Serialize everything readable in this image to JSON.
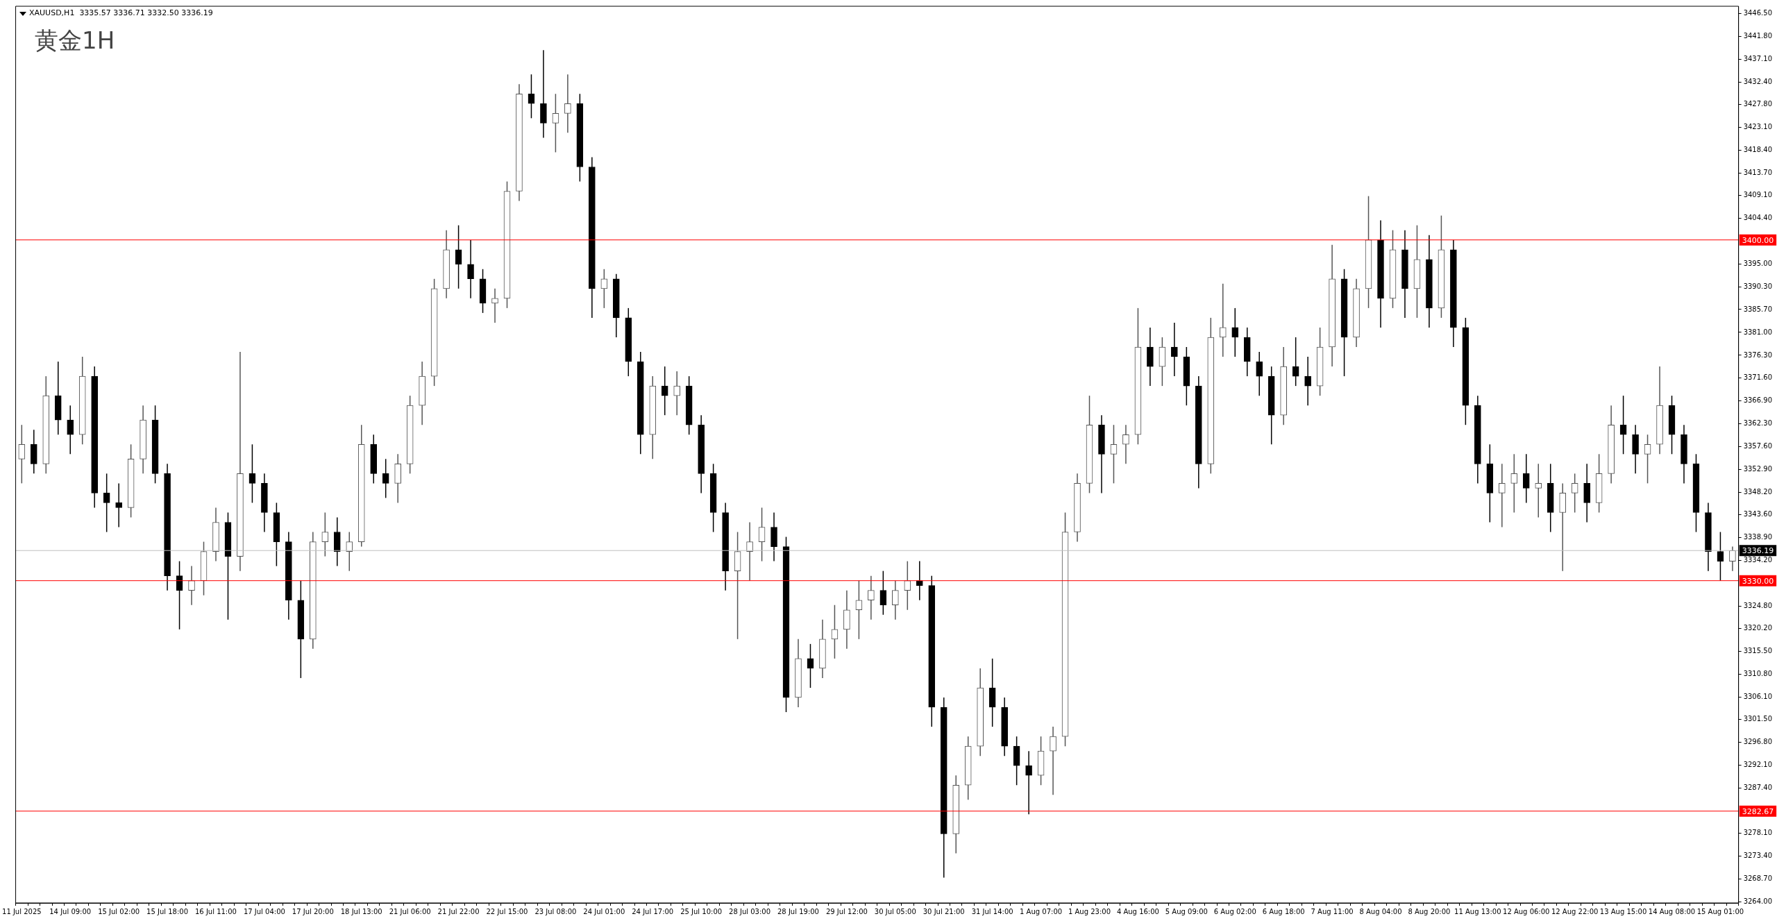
{
  "chart_data": {
    "type": "candlestick",
    "title": "黄金1H",
    "subtitle": "XAUUSD,H1  3335.57 3336.71 3332.50 3336.19",
    "grid": false,
    "legend": false,
    "categories": [
      "11 Jul 2025",
      null,
      null,
      null,
      "14 Jul 09:00",
      null,
      null,
      null,
      "15 Jul 02:00",
      null,
      null,
      null,
      "15 Jul 18:00",
      null,
      null,
      null,
      "16 Jul 11:00",
      null,
      null,
      null,
      "17 Jul 04:00",
      null,
      null,
      null,
      "17 Jul 20:00",
      null,
      null,
      null,
      "18 Jul 13:00",
      null,
      null,
      null,
      "21 Jul 06:00",
      null,
      null,
      null,
      "21 Jul 22:00",
      null,
      null,
      null,
      "22 Jul 15:00",
      null,
      null,
      null,
      "23 Jul 08:00",
      null,
      null,
      null,
      "24 Jul 01:00",
      null,
      null,
      null,
      "24 Jul 17:00",
      null,
      null,
      null,
      "25 Jul 10:00",
      null,
      null,
      null,
      "28 Jul 03:00",
      null,
      null,
      null,
      "28 Jul 19:00",
      null,
      null,
      null,
      "29 Jul 12:00",
      null,
      null,
      null,
      "30 Jul 05:00",
      null,
      null,
      null,
      "30 Jul 21:00",
      null,
      null,
      null,
      "31 Jul 14:00",
      null,
      null,
      null,
      "1 Aug 07:00",
      null,
      null,
      null,
      "1 Aug 23:00",
      null,
      null,
      null,
      "4 Aug 16:00",
      null,
      null,
      null,
      "5 Aug 09:00",
      null,
      null,
      null,
      "6 Aug 02:00",
      null,
      null,
      null,
      "6 Aug 18:00",
      null,
      null,
      null,
      "7 Aug 11:00",
      null,
      null,
      null,
      "8 Aug 04:00",
      null,
      null,
      null,
      "8 Aug 20:00",
      null,
      null,
      null,
      "11 Aug 13:00",
      null,
      null,
      null,
      "12 Aug 06:00",
      null,
      null,
      null,
      "12 Aug 22:00",
      null,
      null,
      null,
      "13 Aug 15:00",
      null,
      null,
      null,
      "14 Aug 08:00",
      null,
      null,
      null,
      "15 Aug 01:00",
      null
    ],
    "ohlc": [
      [
        3355,
        3362,
        3350,
        3358
      ],
      [
        3358,
        3361,
        3352,
        3354
      ],
      [
        3354,
        3372,
        3352,
        3368
      ],
      [
        3368,
        3375,
        3360,
        3363
      ],
      [
        3363,
        3366,
        3356,
        3360
      ],
      [
        3360,
        3376,
        3358,
        3372
      ],
      [
        3372,
        3374,
        3345,
        3348
      ],
      [
        3348,
        3352,
        3340,
        3346
      ],
      [
        3346,
        3350,
        3341,
        3345
      ],
      [
        3345,
        3358,
        3343,
        3355
      ],
      [
        3355,
        3366,
        3352,
        3363
      ],
      [
        3363,
        3366,
        3350,
        3352
      ],
      [
        3352,
        3354,
        3328,
        3331
      ],
      [
        3331,
        3334,
        3320,
        3328
      ],
      [
        3328,
        3333,
        3325,
        3330
      ],
      [
        3330,
        3338,
        3327,
        3336
      ],
      [
        3336,
        3345,
        3334,
        3342
      ],
      [
        3342,
        3344,
        3322,
        3335
      ],
      [
        3335,
        3377,
        3332,
        3352
      ],
      [
        3352,
        3358,
        3346,
        3350
      ],
      [
        3350,
        3352,
        3340,
        3344
      ],
      [
        3344,
        3346,
        3333,
        3338
      ],
      [
        3338,
        3340,
        3322,
        3326
      ],
      [
        3326,
        3330,
        3310,
        3318
      ],
      [
        3318,
        3340,
        3316,
        3338
      ],
      [
        3338,
        3344,
        3335,
        3340
      ],
      [
        3340,
        3343,
        3333,
        3336
      ],
      [
        3336,
        3340,
        3332,
        3338
      ],
      [
        3338,
        3362,
        3337,
        3358
      ],
      [
        3358,
        3360,
        3350,
        3352
      ],
      [
        3352,
        3355,
        3347,
        3350
      ],
      [
        3350,
        3356,
        3346,
        3354
      ],
      [
        3354,
        3368,
        3352,
        3366
      ],
      [
        3366,
        3375,
        3362,
        3372
      ],
      [
        3372,
        3392,
        3370,
        3390
      ],
      [
        3390,
        3402,
        3388,
        3398
      ],
      [
        3398,
        3403,
        3390,
        3395
      ],
      [
        3395,
        3400,
        3388,
        3392
      ],
      [
        3392,
        3394,
        3385,
        3387
      ],
      [
        3387,
        3390,
        3383,
        3388
      ],
      [
        3388,
        3412,
        3386,
        3410
      ],
      [
        3410,
        3432,
        3408,
        3430
      ],
      [
        3430,
        3434,
        3425,
        3428
      ],
      [
        3428,
        3439,
        3421,
        3424
      ],
      [
        3424,
        3430,
        3418,
        3426
      ],
      [
        3426,
        3434,
        3422,
        3428
      ],
      [
        3428,
        3430,
        3412,
        3415
      ],
      [
        3415,
        3417,
        3384,
        3390
      ],
      [
        3390,
        3394,
        3386,
        3392
      ],
      [
        3392,
        3393,
        3380,
        3384
      ],
      [
        3384,
        3386,
        3372,
        3375
      ],
      [
        3375,
        3377,
        3356,
        3360
      ],
      [
        3360,
        3372,
        3355,
        3370
      ],
      [
        3370,
        3374,
        3364,
        3368
      ],
      [
        3368,
        3373,
        3364,
        3370
      ],
      [
        3370,
        3372,
        3360,
        3362
      ],
      [
        3362,
        3364,
        3348,
        3352
      ],
      [
        3352,
        3354,
        3340,
        3344
      ],
      [
        3344,
        3346,
        3328,
        3332
      ],
      [
        3332,
        3340,
        3318,
        3336
      ],
      [
        3336,
        3342,
        3330,
        3338
      ],
      [
        3338,
        3345,
        3334,
        3341
      ],
      [
        3341,
        3344,
        3334,
        3337
      ],
      [
        3337,
        3339,
        3303,
        3306
      ],
      [
        3306,
        3318,
        3304,
        3314
      ],
      [
        3314,
        3317,
        3308,
        3312
      ],
      [
        3312,
        3322,
        3310,
        3318
      ],
      [
        3318,
        3325,
        3314,
        3320
      ],
      [
        3320,
        3328,
        3316,
        3324
      ],
      [
        3324,
        3330,
        3318,
        3326
      ],
      [
        3326,
        3331,
        3322,
        3328
      ],
      [
        3328,
        3332,
        3323,
        3325
      ],
      [
        3325,
        3330,
        3322,
        3328
      ],
      [
        3328,
        3334,
        3324,
        3330
      ],
      [
        3330,
        3334,
        3326,
        3329
      ],
      [
        3329,
        3331,
        3300,
        3304
      ],
      [
        3304,
        3306,
        3269,
        3278
      ],
      [
        3278,
        3290,
        3274,
        3288
      ],
      [
        3288,
        3298,
        3285,
        3296
      ],
      [
        3296,
        3312,
        3294,
        3308
      ],
      [
        3308,
        3314,
        3300,
        3304
      ],
      [
        3304,
        3306,
        3294,
        3296
      ],
      [
        3296,
        3298,
        3288,
        3292
      ],
      [
        3292,
        3295,
        3282,
        3290
      ],
      [
        3290,
        3298,
        3288,
        3295
      ],
      [
        3295,
        3300,
        3286,
        3298
      ],
      [
        3298,
        3344,
        3296,
        3340
      ],
      [
        3340,
        3352,
        3338,
        3350
      ],
      [
        3350,
        3368,
        3348,
        3362
      ],
      [
        3362,
        3364,
        3348,
        3356
      ],
      [
        3356,
        3362,
        3350,
        3358
      ],
      [
        3358,
        3362,
        3354,
        3360
      ],
      [
        3360,
        3386,
        3358,
        3378
      ],
      [
        3378,
        3382,
        3370,
        3374
      ],
      [
        3374,
        3380,
        3370,
        3378
      ],
      [
        3378,
        3383,
        3372,
        3376
      ],
      [
        3376,
        3378,
        3366,
        3370
      ],
      [
        3370,
        3372,
        3349,
        3354
      ],
      [
        3354,
        3384,
        3352,
        3380
      ],
      [
        3380,
        3391,
        3376,
        3382
      ],
      [
        3382,
        3386,
        3376,
        3380
      ],
      [
        3380,
        3382,
        3372,
        3375
      ],
      [
        3375,
        3377,
        3368,
        3372
      ],
      [
        3372,
        3374,
        3358,
        3364
      ],
      [
        3364,
        3378,
        3362,
        3374
      ],
      [
        3374,
        3380,
        3370,
        3372
      ],
      [
        3372,
        3376,
        3366,
        3370
      ],
      [
        3370,
        3382,
        3368,
        3378
      ],
      [
        3378,
        3399,
        3374,
        3392
      ],
      [
        3392,
        3394,
        3372,
        3380
      ],
      [
        3380,
        3392,
        3378,
        3390
      ],
      [
        3390,
        3409,
        3386,
        3400
      ],
      [
        3400,
        3404,
        3382,
        3388
      ],
      [
        3388,
        3402,
        3386,
        3398
      ],
      [
        3398,
        3402,
        3384,
        3390
      ],
      [
        3390,
        3403,
        3384,
        3396
      ],
      [
        3396,
        3401,
        3382,
        3386
      ],
      [
        3386,
        3405,
        3384,
        3398
      ],
      [
        3398,
        3400,
        3378,
        3382
      ],
      [
        3382,
        3384,
        3362,
        3366
      ],
      [
        3366,
        3368,
        3350,
        3354
      ],
      [
        3354,
        3358,
        3342,
        3348
      ],
      [
        3348,
        3354,
        3341,
        3350
      ],
      [
        3350,
        3356,
        3344,
        3352
      ],
      [
        3352,
        3356,
        3346,
        3349
      ],
      [
        3349,
        3354,
        3343,
        3350
      ],
      [
        3350,
        3354,
        3340,
        3344
      ],
      [
        3344,
        3350,
        3332,
        3348
      ],
      [
        3348,
        3352,
        3344,
        3350
      ],
      [
        3350,
        3354,
        3342,
        3346
      ],
      [
        3346,
        3356,
        3344,
        3352
      ],
      [
        3352,
        3366,
        3350,
        3362
      ],
      [
        3362,
        3368,
        3356,
        3360
      ],
      [
        3360,
        3362,
        3352,
        3356
      ],
      [
        3356,
        3360,
        3350,
        3358
      ],
      [
        3358,
        3374,
        3356,
        3366
      ],
      [
        3366,
        3368,
        3356,
        3360
      ],
      [
        3360,
        3362,
        3350,
        3354
      ],
      [
        3354,
        3356,
        3340,
        3344
      ],
      [
        3344,
        3346,
        3332,
        3336
      ],
      [
        3336,
        3340,
        3330,
        3334
      ],
      [
        3334,
        3337,
        3332,
        3336.19
      ]
    ],
    "colors": [
      "#555555",
      "#000000",
      "#555555",
      "#000000",
      "#000000",
      "#555555",
      "#000000",
      "#000000",
      "#000000",
      "#555555",
      "#555555",
      "#000000",
      "#000000",
      "#000000",
      "#555555",
      "#555555",
      "#555555",
      "#000000",
      "#555555",
      "#000000",
      "#000000",
      "#000000",
      "#000000",
      "#000000",
      "#555555",
      "#555555",
      "#000000",
      "#555555",
      "#555555",
      "#000000",
      "#000000",
      "#555555",
      "#555555",
      "#555555",
      "#555555",
      "#555555",
      "#000000",
      "#000000",
      "#000000",
      "#555555",
      "#555555",
      "#555555",
      "#000000",
      "#000000",
      "#555555",
      "#555555",
      "#000000",
      "#000000",
      "#555555",
      "#000000",
      "#000000",
      "#000000",
      "#555555",
      "#000000",
      "#555555",
      "#000000",
      "#000000",
      "#000000",
      "#000000",
      "#555555",
      "#555555",
      "#555555",
      "#000000",
      "#000000",
      "#555555",
      "#000000",
      "#555555",
      "#555555",
      "#555555",
      "#555555",
      "#555555",
      "#000000",
      "#555555",
      "#555555",
      "#000000",
      "#000000",
      "#000000",
      "#555555",
      "#555555",
      "#555555",
      "#000000",
      "#000000",
      "#000000",
      "#000000",
      "#555555",
      "#555555",
      "#555555",
      "#555555",
      "#555555",
      "#000000",
      "#555555",
      "#555555",
      "#555555",
      "#000000",
      "#555555",
      "#000000",
      "#000000",
      "#000000",
      "#555555",
      "#555555",
      "#000000",
      "#000000",
      "#000000",
      "#000000",
      "#555555",
      "#000000",
      "#000000",
      "#555555",
      "#555555",
      "#000000",
      "#555555",
      "#555555",
      "#000000",
      "#555555",
      "#000000",
      "#555555",
      "#000000",
      "#555555",
      "#000000",
      "#000000",
      "#000000",
      "#000000",
      "#555555",
      "#555555",
      "#000000",
      "#555555",
      "#000000",
      "#555555",
      "#555555",
      "#000000",
      "#555555",
      "#555555",
      "#000000",
      "#000000",
      "#555555",
      "#555555",
      "#000000",
      "#000000",
      "#000000",
      "#000000",
      "#000000",
      "#555555"
    ],
    "ylim": [
      3263.8,
      3448
    ],
    "yticks": [
      {
        "value": 3446.5,
        "label": "3446.50"
      },
      {
        "value": 3441.8,
        "label": "3441.80"
      },
      {
        "value": 3437.1,
        "label": "3437.10"
      },
      {
        "value": 3432.4,
        "label": "3432.40"
      },
      {
        "value": 3427.8,
        "label": "3427.80"
      },
      {
        "value": 3423.1,
        "label": "3423.10"
      },
      {
        "value": 3418.4,
        "label": "3418.40"
      },
      {
        "value": 3413.7,
        "label": "3413.70"
      },
      {
        "value": 3409.1,
        "label": "3409.10"
      },
      {
        "value": 3404.4,
        "label": "3404.40"
      },
      {
        "value": 3395,
        "label": "3395.00"
      },
      {
        "value": 3390.3,
        "label": "3390.30"
      },
      {
        "value": 3385.7,
        "label": "3385.70"
      },
      {
        "value": 3381,
        "label": "3381.00"
      },
      {
        "value": 3376.3,
        "label": "3376.30"
      },
      {
        "value": 3371.6,
        "label": "3371.60"
      },
      {
        "value": 3366.9,
        "label": "3366.90"
      },
      {
        "value": 3362.3,
        "label": "3362.30"
      },
      {
        "value": 3357.6,
        "label": "3357.60"
      },
      {
        "value": 3352.9,
        "label": "3352.90"
      },
      {
        "value": 3348.2,
        "label": "3348.20"
      },
      {
        "value": 3343.6,
        "label": "3343.60"
      },
      {
        "value": 3338.9,
        "label": "3338.90"
      },
      {
        "value": 3334.2,
        "label": "3334.20"
      },
      {
        "value": 3324.8,
        "label": "3324.80"
      },
      {
        "value": 3320.2,
        "label": "3320.20"
      },
      {
        "value": 3315.5,
        "label": "3315.50"
      },
      {
        "value": 3310.8,
        "label": "3310.80"
      },
      {
        "value": 3306.1,
        "label": "3306.10"
      },
      {
        "value": 3301.5,
        "label": "3301.50"
      },
      {
        "value": 3296.8,
        "label": "3296.80"
      },
      {
        "value": 3292.1,
        "label": "3292.10"
      },
      {
        "value": 3287.4,
        "label": "3287.40"
      },
      {
        "value": 3278.1,
        "label": "3278.10"
      },
      {
        "value": 3273.4,
        "label": "3273.40"
      },
      {
        "value": 3268.7,
        "label": "3268.70"
      },
      {
        "value": 3264,
        "label": "3264.00"
      }
    ],
    "ref_lines": [
      {
        "axis": "y",
        "value": 3400,
        "label": "3400.00",
        "color": "#ff0000"
      },
      {
        "axis": "y",
        "value": 3330,
        "label": "3330.00",
        "color": "#ff0000"
      },
      {
        "axis": "y",
        "value": 3282.67,
        "label": "3282.67",
        "color": "#ff0000"
      },
      {
        "axis": "y",
        "value": 3336.19,
        "label": "3336.19",
        "color": "#c0c0c0"
      }
    ]
  }
}
